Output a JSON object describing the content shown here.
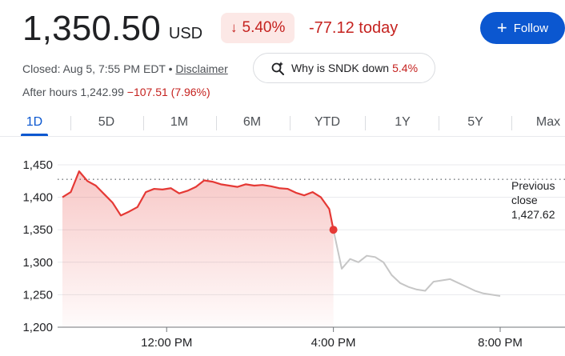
{
  "quote": {
    "price": "1,350.50",
    "currency": "USD",
    "change_pct": "5.40%",
    "change_abs": "-77.12 today",
    "closed_text": "Closed: Aug 5, 7:55 PM EDT",
    "separator": " • ",
    "disclaimer": "Disclaimer",
    "after_hours_label": "After hours 1,242.99",
    "after_hours_change": "−107.51 (7.96%)"
  },
  "actions": {
    "follow_label": "Follow",
    "why_label": "Why is SNDK down",
    "why_pct": "5.4%"
  },
  "tabs": [
    "1D",
    "5D",
    "1M",
    "6M",
    "YTD",
    "1Y",
    "5Y",
    "Max"
  ],
  "active_tab": "1D",
  "colors": {
    "negative": "#c5221f",
    "line": "#e53935",
    "after_hours_line": "#c6c6c6",
    "accent": "#0b57d0"
  },
  "chart_data": {
    "type": "line",
    "yticks": [
      "1,450",
      "1,400",
      "1,350",
      "1,300",
      "1,250",
      "1,200"
    ],
    "ytick_values": [
      1450,
      1400,
      1350,
      1300,
      1250,
      1200
    ],
    "xticks": [
      "12:00 PM",
      "4:00 PM",
      "8:00 PM"
    ],
    "xtick_hours": [
      12,
      16,
      20
    ],
    "ylim": [
      1200,
      1450
    ],
    "previous_close": {
      "label_1": "Previous",
      "label_2": "close",
      "value_label": "1,427.62",
      "value": 1427.62
    },
    "series": [
      {
        "session": "regular",
        "x": [
          9.5,
          9.7,
          9.9,
          10.1,
          10.3,
          10.5,
          10.7,
          10.9,
          11.1,
          11.3,
          11.5,
          11.7,
          11.9,
          12.1,
          12.3,
          12.5,
          12.7,
          12.9,
          13.1,
          13.3,
          13.5,
          13.7,
          13.9,
          14.1,
          14.3,
          14.5,
          14.7,
          14.9,
          15.1,
          15.3,
          15.5,
          15.7,
          15.9,
          16.0
        ],
        "y": [
          1400,
          1408,
          1440,
          1425,
          1418,
          1405,
          1392,
          1372,
          1378,
          1385,
          1408,
          1413,
          1412,
          1414,
          1406,
          1410,
          1416,
          1426,
          1424,
          1420,
          1418,
          1416,
          1420,
          1418,
          1419,
          1417,
          1414,
          1413,
          1407,
          1403,
          1408,
          1400,
          1382,
          1350
        ]
      },
      {
        "session": "after-hours",
        "x": [
          16.0,
          16.2,
          16.4,
          16.6,
          16.8,
          17.0,
          17.2,
          17.4,
          17.6,
          17.8,
          18.0,
          18.2,
          18.4,
          18.6,
          18.8,
          19.0,
          19.2,
          19.4,
          19.6,
          19.8,
          20.0
        ],
        "y": [
          1350,
          1290,
          1305,
          1300,
          1310,
          1308,
          1300,
          1280,
          1268,
          1262,
          1258,
          1256,
          1270,
          1272,
          1274,
          1268,
          1262,
          1256,
          1252,
          1250,
          1248
        ]
      }
    ]
  }
}
